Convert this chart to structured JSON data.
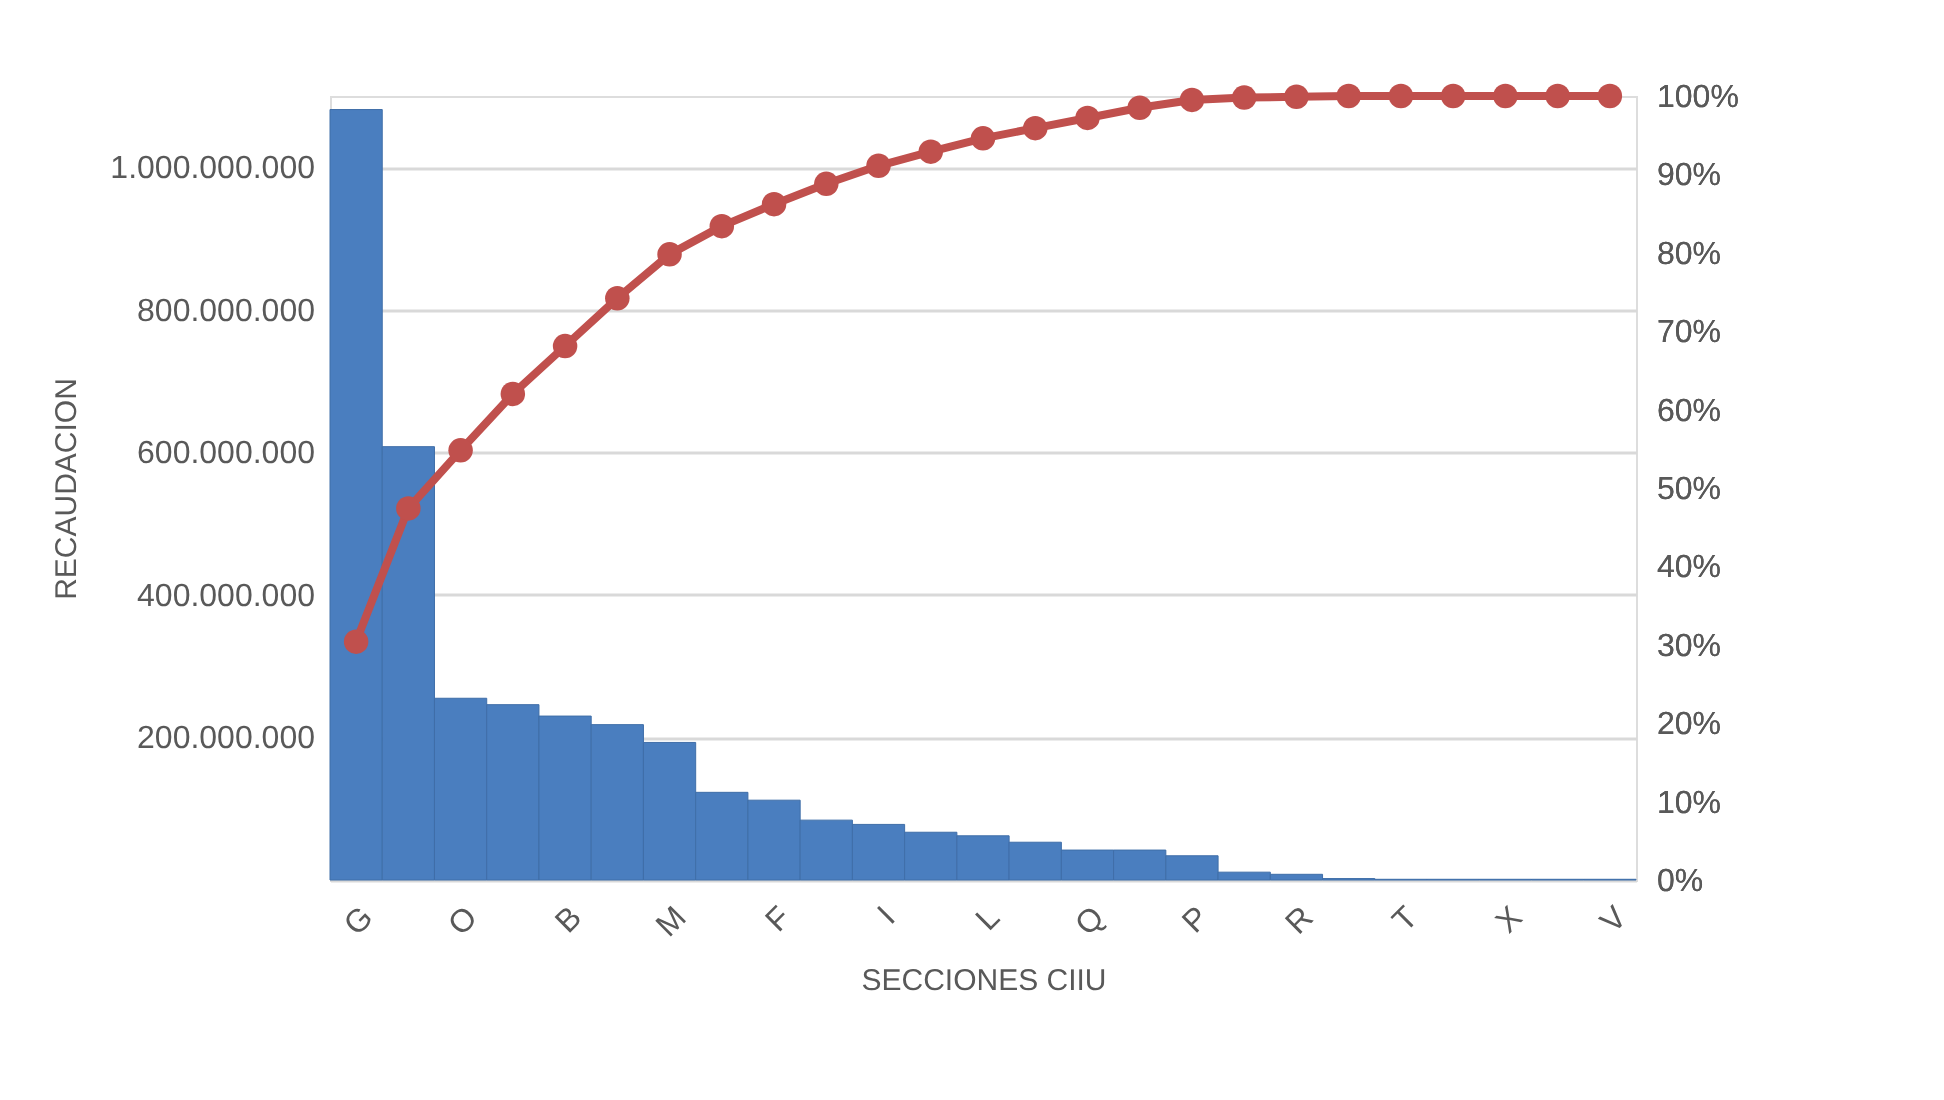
{
  "chart_data": {
    "type": "bar",
    "xlabel": "SECCIONES CIIU",
    "ylabel": "RECAUDACION",
    "categories": [
      "G",
      null,
      "O",
      null,
      "B",
      null,
      "M",
      null,
      "F",
      null,
      "I",
      null,
      "L",
      null,
      "Q",
      null,
      "P",
      null,
      "R",
      null,
      "T",
      null,
      "X",
      null,
      "V"
    ],
    "series": [
      {
        "color": "#4a7ebf",
        "values": [
          1081000000,
          608000000,
          255000000,
          246000000,
          230000000,
          218000000,
          193000000,
          123000000,
          112000000,
          84000000,
          78000000,
          67000000,
          62000000,
          53000000,
          42000000,
          42000000,
          34000000,
          11000000,
          8000000,
          2000000,
          1000000,
          1000000,
          1000000,
          1000000,
          1000000
        ]
      },
      {
        "type": "line",
        "axis": "y2",
        "color": "#c0504d",
        "marker": "circle",
        "values": [
          30.4,
          47.4,
          54.8,
          62.0,
          68.1,
          74.2,
          79.8,
          83.4,
          86.2,
          88.8,
          91.1,
          92.9,
          94.6,
          95.9,
          97.2,
          98.5,
          99.5,
          99.8,
          99.9,
          100,
          100,
          100,
          100,
          100,
          100
        ]
      }
    ],
    "ylim": [
      0,
      1100000000
    ],
    "yticks": [
      {
        "value": 0,
        "label": null
      },
      {
        "value": 200000000,
        "label": "200.000.000"
      },
      {
        "value": 400000000,
        "label": "400.000.000"
      },
      {
        "value": 600000000,
        "label": "600.000.000"
      },
      {
        "value": 800000000,
        "label": "800.000.000"
      },
      {
        "value": 1000000000,
        "label": "1.000.000.000"
      }
    ],
    "y2lim": [
      0,
      100
    ],
    "y2ticks": [
      {
        "value": 0,
        "label": "0%"
      },
      {
        "value": 10,
        "label": "10%"
      },
      {
        "value": 20,
        "label": "20%"
      },
      {
        "value": 30,
        "label": "30%"
      },
      {
        "value": 40,
        "label": "40%"
      },
      {
        "value": 50,
        "label": "50%"
      },
      {
        "value": 60,
        "label": "60%"
      },
      {
        "value": 70,
        "label": "70%"
      },
      {
        "value": 80,
        "label": "80%"
      },
      {
        "value": 90,
        "label": "90%"
      },
      {
        "value": 100,
        "label": "100%"
      }
    ],
    "grid": "y"
  }
}
